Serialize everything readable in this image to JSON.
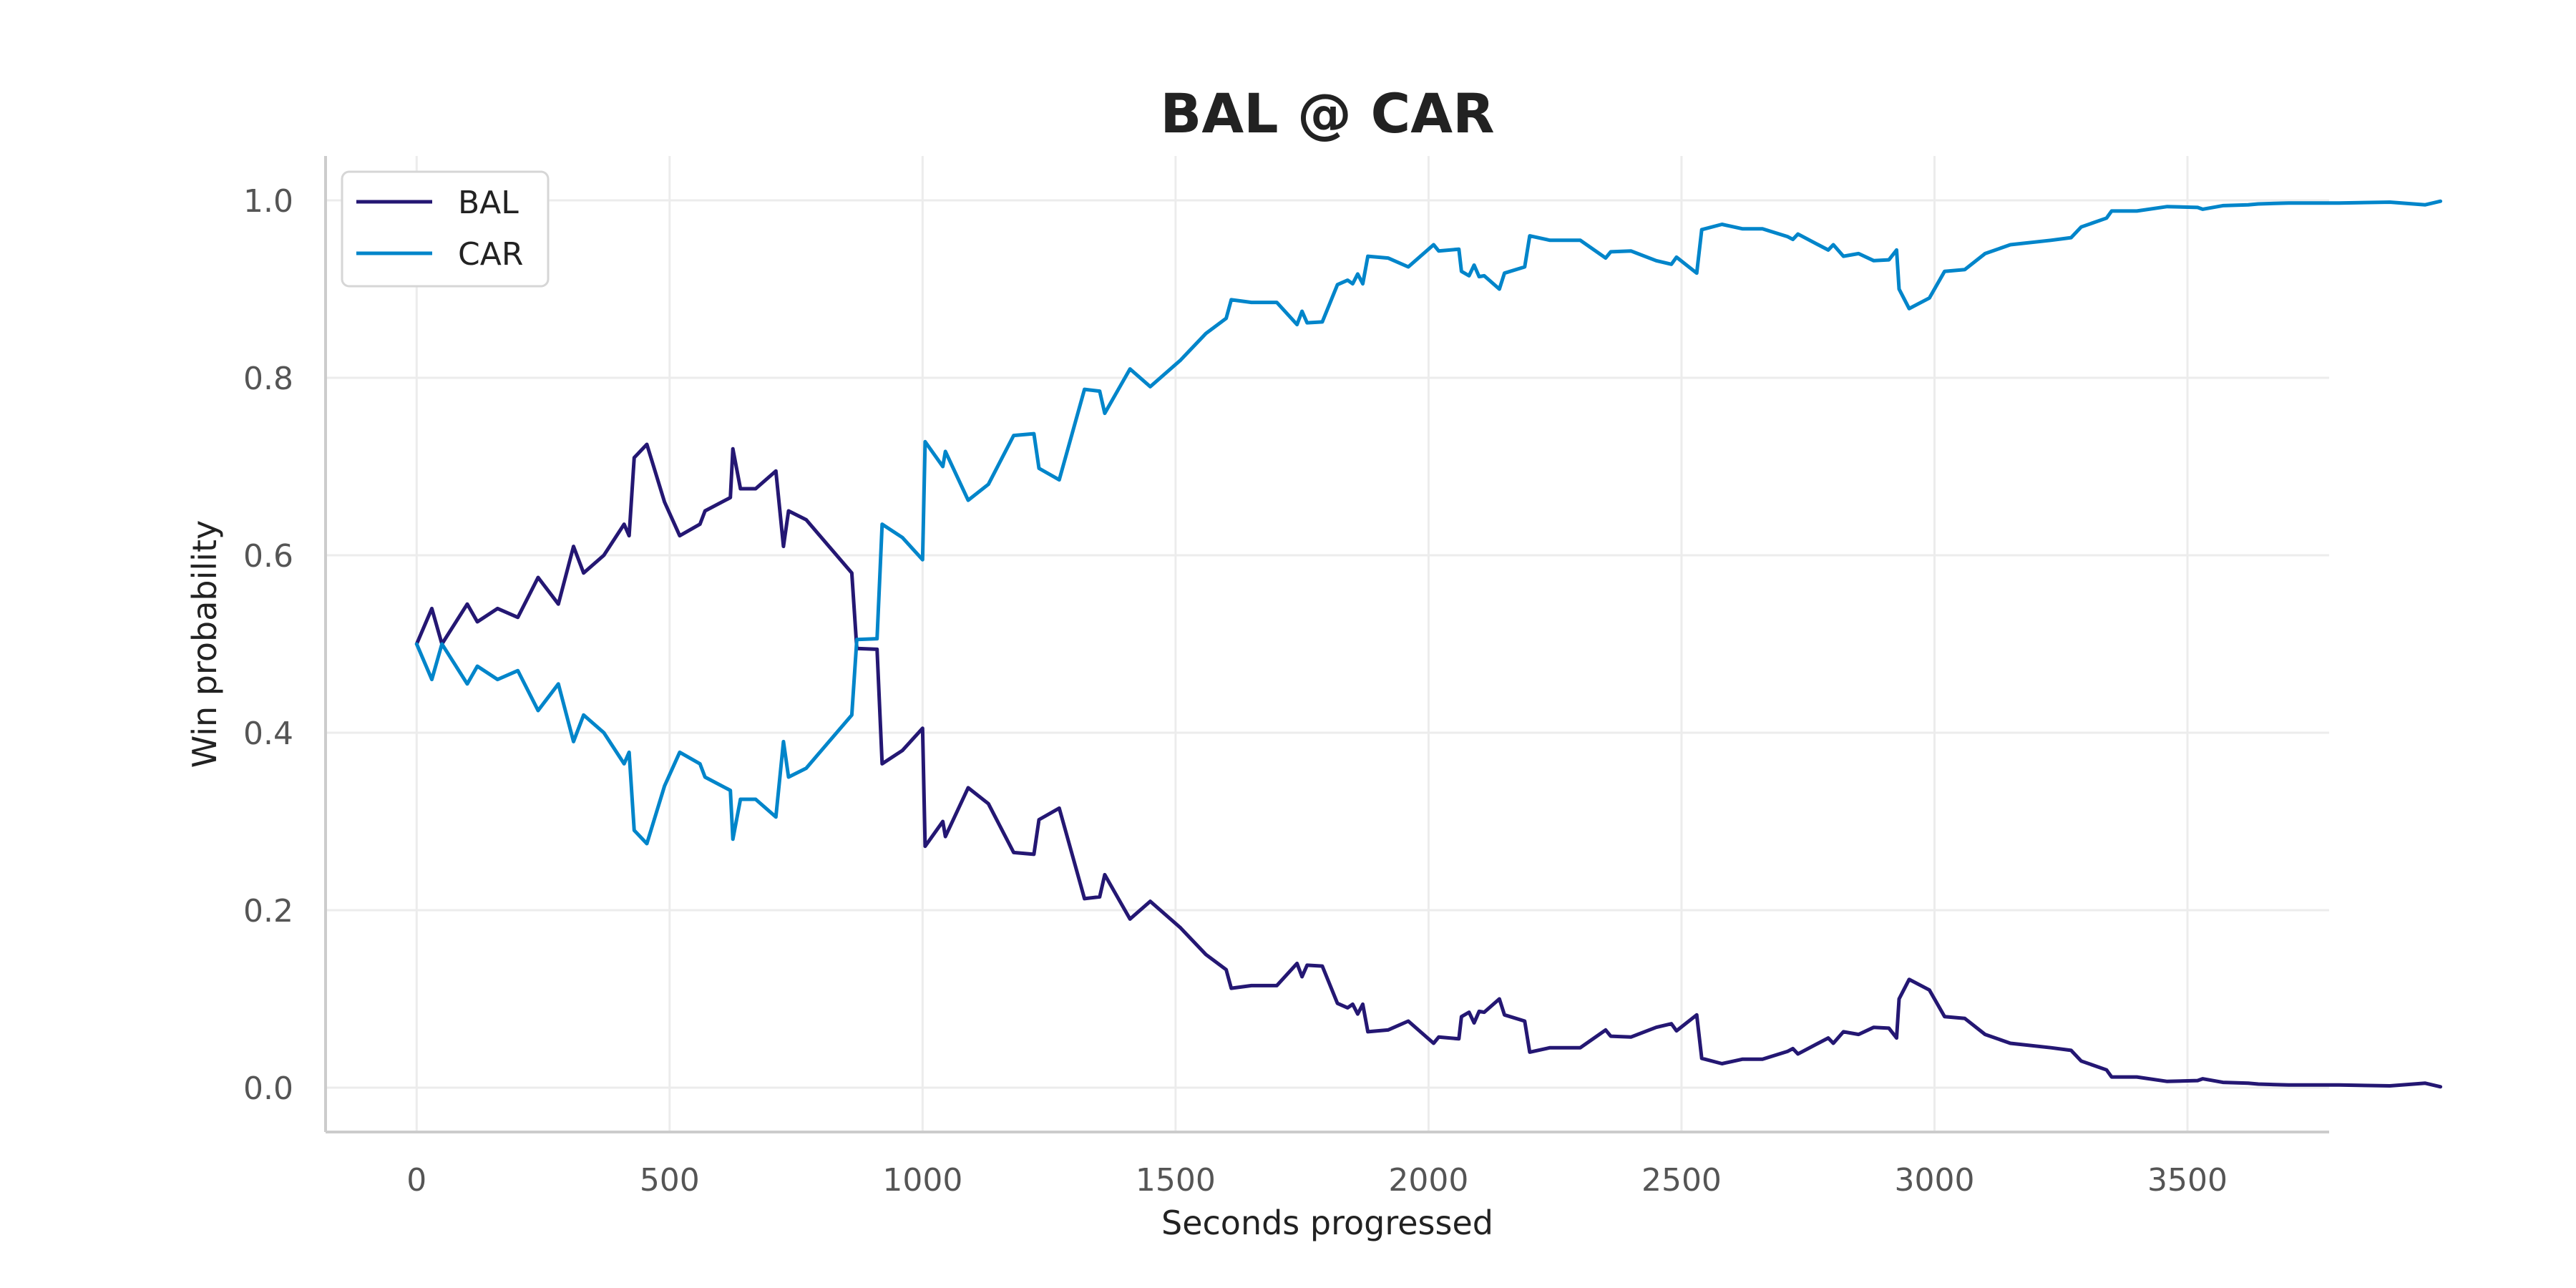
{
  "chart_data": {
    "type": "line",
    "title": "BAL @ CAR",
    "xlabel": "Seconds progressed",
    "ylabel": "Win probability",
    "xlim": [
      -180,
      3780
    ],
    "ylim": [
      -0.05,
      1.05
    ],
    "xticks": [
      0,
      500,
      1000,
      1500,
      2000,
      2500,
      3000,
      3500
    ],
    "yticks": [
      0.0,
      0.2,
      0.4,
      0.6,
      0.8,
      1.0
    ],
    "xtick_labels": [
      "0",
      "500",
      "1000",
      "1500",
      "2000",
      "2500",
      "3000",
      "3500"
    ],
    "ytick_labels": [
      "0.0",
      "0.2",
      "0.4",
      "0.6",
      "0.8",
      "1.0"
    ],
    "grid": true,
    "legend_position": "top-left",
    "colors": {
      "BAL": "#241773",
      "CAR": "#0085CA"
    },
    "series": [
      {
        "name": "BAL",
        "points": [
          [
            0,
            0.5
          ],
          [
            30,
            0.54
          ],
          [
            50,
            0.5
          ],
          [
            100,
            0.545
          ],
          [
            120,
            0.525
          ],
          [
            160,
            0.54
          ],
          [
            200,
            0.53
          ],
          [
            240,
            0.575
          ],
          [
            280,
            0.545
          ],
          [
            310,
            0.61
          ],
          [
            330,
            0.58
          ],
          [
            370,
            0.6
          ],
          [
            410,
            0.635
          ],
          [
            420,
            0.622
          ],
          [
            430,
            0.71
          ],
          [
            455,
            0.725
          ],
          [
            490,
            0.66
          ],
          [
            520,
            0.622
          ],
          [
            560,
            0.635
          ],
          [
            570,
            0.65
          ],
          [
            620,
            0.665
          ],
          [
            625,
            0.72
          ],
          [
            640,
            0.675
          ],
          [
            670,
            0.675
          ],
          [
            710,
            0.695
          ],
          [
            725,
            0.61
          ],
          [
            735,
            0.65
          ],
          [
            770,
            0.64
          ],
          [
            860,
            0.58
          ],
          [
            870,
            0.495
          ],
          [
            910,
            0.494
          ],
          [
            920,
            0.365
          ],
          [
            960,
            0.38
          ],
          [
            1000,
            0.405
          ],
          [
            1005,
            0.272
          ],
          [
            1040,
            0.3
          ],
          [
            1045,
            0.283
          ],
          [
            1090,
            0.338
          ],
          [
            1130,
            0.32
          ],
          [
            1180,
            0.265
          ],
          [
            1220,
            0.263
          ],
          [
            1230,
            0.302
          ],
          [
            1270,
            0.315
          ],
          [
            1320,
            0.213
          ],
          [
            1350,
            0.215
          ],
          [
            1360,
            0.24
          ],
          [
            1380,
            0.22
          ],
          [
            1410,
            0.19
          ],
          [
            1450,
            0.21
          ],
          [
            1510,
            0.18
          ],
          [
            1560,
            0.15
          ],
          [
            1600,
            0.133
          ],
          [
            1610,
            0.112
          ],
          [
            1650,
            0.115
          ],
          [
            1700,
            0.115
          ],
          [
            1740,
            0.14
          ],
          [
            1750,
            0.125
          ],
          [
            1760,
            0.138
          ],
          [
            1790,
            0.137
          ],
          [
            1820,
            0.095
          ],
          [
            1840,
            0.09
          ],
          [
            1850,
            0.094
          ],
          [
            1860,
            0.083
          ],
          [
            1870,
            0.094
          ],
          [
            1880,
            0.063
          ],
          [
            1920,
            0.065
          ],
          [
            1960,
            0.075
          ],
          [
            2010,
            0.05
          ],
          [
            2020,
            0.057
          ],
          [
            2060,
            0.055
          ],
          [
            2065,
            0.08
          ],
          [
            2080,
            0.085
          ],
          [
            2090,
            0.073
          ],
          [
            2100,
            0.086
          ],
          [
            2110,
            0.085
          ],
          [
            2140,
            0.1
          ],
          [
            2150,
            0.082
          ],
          [
            2190,
            0.075
          ],
          [
            2200,
            0.04
          ],
          [
            2240,
            0.045
          ],
          [
            2300,
            0.045
          ],
          [
            2350,
            0.065
          ],
          [
            2360,
            0.058
          ],
          [
            2400,
            0.057
          ],
          [
            2450,
            0.068
          ],
          [
            2480,
            0.072
          ],
          [
            2490,
            0.064
          ],
          [
            2530,
            0.082
          ],
          [
            2540,
            0.033
          ],
          [
            2580,
            0.027
          ],
          [
            2620,
            0.032
          ],
          [
            2660,
            0.032
          ],
          [
            2710,
            0.041
          ],
          [
            2720,
            0.044
          ],
          [
            2730,
            0.038
          ],
          [
            2770,
            0.05
          ],
          [
            2790,
            0.056
          ],
          [
            2800,
            0.05
          ],
          [
            2820,
            0.063
          ],
          [
            2850,
            0.06
          ],
          [
            2880,
            0.068
          ],
          [
            2910,
            0.067
          ],
          [
            2925,
            0.056
          ],
          [
            2930,
            0.1
          ],
          [
            2950,
            0.122
          ],
          [
            2990,
            0.11
          ],
          [
            3020,
            0.08
          ],
          [
            3060,
            0.078
          ],
          [
            3100,
            0.06
          ],
          [
            3150,
            0.05
          ],
          [
            3230,
            0.045
          ],
          [
            3270,
            0.042
          ],
          [
            3290,
            0.03
          ],
          [
            3340,
            0.02
          ],
          [
            3350,
            0.012
          ],
          [
            3400,
            0.012
          ],
          [
            3460,
            0.007
          ],
          [
            3520,
            0.008
          ],
          [
            3530,
            0.01
          ],
          [
            3570,
            0.006
          ],
          [
            3620,
            0.005
          ],
          [
            3640,
            0.004
          ],
          [
            3700,
            0.003
          ],
          [
            3800,
            0.003
          ],
          [
            3900,
            0.002
          ],
          [
            3970,
            0.005
          ],
          [
            4000,
            0.001
          ]
        ]
      },
      {
        "name": "CAR",
        "points": [
          [
            0,
            0.5
          ],
          [
            30,
            0.46
          ],
          [
            50,
            0.5
          ],
          [
            100,
            0.455
          ],
          [
            120,
            0.475
          ],
          [
            160,
            0.46
          ],
          [
            200,
            0.47
          ],
          [
            240,
            0.425
          ],
          [
            280,
            0.455
          ],
          [
            310,
            0.39
          ],
          [
            330,
            0.42
          ],
          [
            370,
            0.4
          ],
          [
            410,
            0.365
          ],
          [
            420,
            0.378
          ],
          [
            430,
            0.29
          ],
          [
            455,
            0.275
          ],
          [
            490,
            0.34
          ],
          [
            520,
            0.378
          ],
          [
            560,
            0.365
          ],
          [
            570,
            0.35
          ],
          [
            620,
            0.335
          ],
          [
            625,
            0.28
          ],
          [
            640,
            0.325
          ],
          [
            670,
            0.325
          ],
          [
            710,
            0.305
          ],
          [
            725,
            0.39
          ],
          [
            735,
            0.35
          ],
          [
            770,
            0.36
          ],
          [
            860,
            0.42
          ],
          [
            870,
            0.505
          ],
          [
            910,
            0.506
          ],
          [
            920,
            0.635
          ],
          [
            960,
            0.62
          ],
          [
            1000,
            0.595
          ],
          [
            1005,
            0.728
          ],
          [
            1040,
            0.7
          ],
          [
            1045,
            0.717
          ],
          [
            1090,
            0.662
          ],
          [
            1130,
            0.68
          ],
          [
            1180,
            0.735
          ],
          [
            1220,
            0.737
          ],
          [
            1230,
            0.698
          ],
          [
            1270,
            0.685
          ],
          [
            1320,
            0.787
          ],
          [
            1350,
            0.785
          ],
          [
            1360,
            0.76
          ],
          [
            1380,
            0.78
          ],
          [
            1410,
            0.81
          ],
          [
            1450,
            0.79
          ],
          [
            1510,
            0.82
          ],
          [
            1560,
            0.85
          ],
          [
            1600,
            0.867
          ],
          [
            1610,
            0.888
          ],
          [
            1650,
            0.885
          ],
          [
            1700,
            0.885
          ],
          [
            1740,
            0.86
          ],
          [
            1750,
            0.875
          ],
          [
            1760,
            0.862
          ],
          [
            1790,
            0.863
          ],
          [
            1820,
            0.905
          ],
          [
            1840,
            0.91
          ],
          [
            1850,
            0.906
          ],
          [
            1860,
            0.917
          ],
          [
            1870,
            0.906
          ],
          [
            1880,
            0.937
          ],
          [
            1920,
            0.935
          ],
          [
            1960,
            0.925
          ],
          [
            2010,
            0.95
          ],
          [
            2020,
            0.943
          ],
          [
            2060,
            0.945
          ],
          [
            2065,
            0.92
          ],
          [
            2080,
            0.915
          ],
          [
            2090,
            0.927
          ],
          [
            2100,
            0.914
          ],
          [
            2110,
            0.915
          ],
          [
            2140,
            0.9
          ],
          [
            2150,
            0.918
          ],
          [
            2190,
            0.925
          ],
          [
            2200,
            0.96
          ],
          [
            2240,
            0.955
          ],
          [
            2300,
            0.955
          ],
          [
            2350,
            0.935
          ],
          [
            2360,
            0.942
          ],
          [
            2400,
            0.943
          ],
          [
            2450,
            0.932
          ],
          [
            2480,
            0.928
          ],
          [
            2490,
            0.936
          ],
          [
            2530,
            0.918
          ],
          [
            2540,
            0.967
          ],
          [
            2580,
            0.973
          ],
          [
            2620,
            0.968
          ],
          [
            2660,
            0.968
          ],
          [
            2710,
            0.959
          ],
          [
            2720,
            0.956
          ],
          [
            2730,
            0.962
          ],
          [
            2770,
            0.95
          ],
          [
            2790,
            0.944
          ],
          [
            2800,
            0.95
          ],
          [
            2820,
            0.937
          ],
          [
            2850,
            0.94
          ],
          [
            2880,
            0.932
          ],
          [
            2910,
            0.933
          ],
          [
            2925,
            0.944
          ],
          [
            2930,
            0.9
          ],
          [
            2950,
            0.878
          ],
          [
            2990,
            0.89
          ],
          [
            3020,
            0.92
          ],
          [
            3060,
            0.922
          ],
          [
            3100,
            0.94
          ],
          [
            3150,
            0.95
          ],
          [
            3230,
            0.955
          ],
          [
            3270,
            0.958
          ],
          [
            3290,
            0.97
          ],
          [
            3340,
            0.98
          ],
          [
            3350,
            0.988
          ],
          [
            3400,
            0.988
          ],
          [
            3460,
            0.993
          ],
          [
            3520,
            0.992
          ],
          [
            3530,
            0.99
          ],
          [
            3570,
            0.994
          ],
          [
            3620,
            0.995
          ],
          [
            3640,
            0.996
          ],
          [
            3700,
            0.997
          ],
          [
            3800,
            0.997
          ],
          [
            3900,
            0.998
          ],
          [
            3970,
            0.995
          ],
          [
            4000,
            0.999
          ]
        ]
      }
    ]
  }
}
